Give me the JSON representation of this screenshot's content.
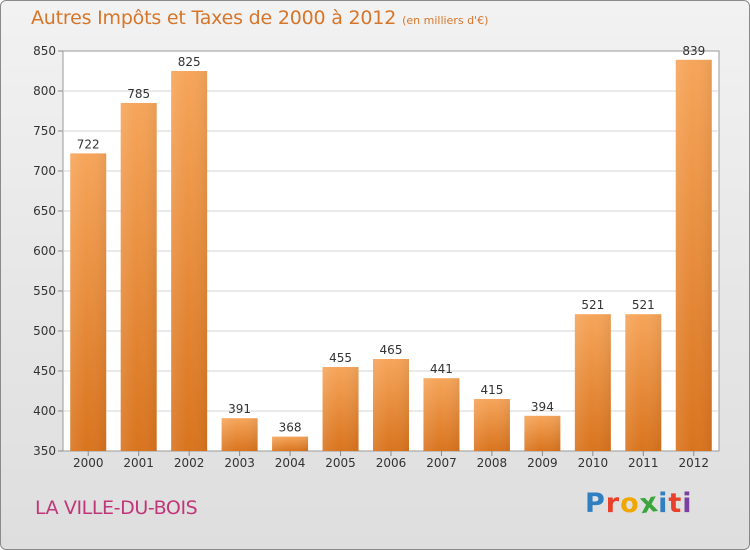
{
  "header": {
    "title": "Autres Impôts et Taxes de 2000 à 2012",
    "subtitle": "(en milliers d'€)"
  },
  "footer": {
    "place": "LA VILLE-DU-BOIS",
    "logo_text": "Proxiti",
    "logo_letters": [
      {
        "ch": "P",
        "color": "#2f7fc1"
      },
      {
        "ch": "r",
        "color": "#e8402a"
      },
      {
        "ch": "o",
        "color": "#f0a800"
      },
      {
        "ch": "x",
        "color": "#3aa53a"
      },
      {
        "ch": "i",
        "color": "#2f7fc1"
      },
      {
        "ch": "t",
        "color": "#e8402a"
      },
      {
        "ch": "i",
        "color": "#7a3fa0"
      }
    ]
  },
  "chart_data": {
    "type": "bar",
    "title": "Autres Impôts et Taxes de 2000 à 2012",
    "subtitle": "(en milliers d'€)",
    "categories": [
      "2000",
      "2001",
      "2002",
      "2003",
      "2004",
      "2005",
      "2006",
      "2007",
      "2008",
      "2009",
      "2010",
      "2011",
      "2012"
    ],
    "values": [
      722,
      785,
      825,
      391,
      368,
      455,
      465,
      441,
      415,
      394,
      521,
      521,
      839
    ],
    "ylim": [
      350,
      850
    ],
    "yticks": [
      350,
      400,
      450,
      500,
      550,
      600,
      650,
      700,
      750,
      800,
      850
    ],
    "grid": true,
    "bar_color_top": "#f6a55a",
    "bar_color_bottom": "#d9741e",
    "xlabel": "",
    "ylabel": ""
  }
}
